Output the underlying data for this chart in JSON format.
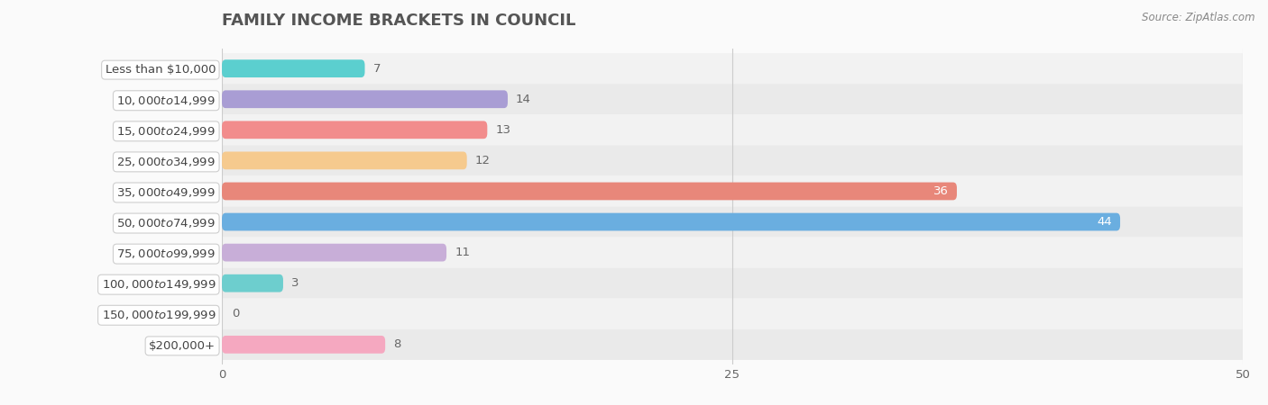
{
  "title": "FAMILY INCOME BRACKETS IN COUNCIL",
  "source": "Source: ZipAtlas.com",
  "categories": [
    "Less than $10,000",
    "$10,000 to $14,999",
    "$15,000 to $24,999",
    "$25,000 to $34,999",
    "$35,000 to $49,999",
    "$50,000 to $74,999",
    "$75,000 to $99,999",
    "$100,000 to $149,999",
    "$150,000 to $199,999",
    "$200,000+"
  ],
  "values": [
    7,
    14,
    13,
    12,
    36,
    44,
    11,
    3,
    0,
    8
  ],
  "bar_colors": [
    "#5BCFCF",
    "#A99DD4",
    "#F28C8C",
    "#F6CA8E",
    "#E8877A",
    "#6aaee0",
    "#C8AED8",
    "#6DCECE",
    "#B0A8D8",
    "#F5A8C0"
  ],
  "xlim": [
    0,
    50
  ],
  "xticks": [
    0,
    25,
    50
  ],
  "title_fontsize": 13,
  "label_fontsize": 9.5,
  "value_fontsize": 9.5,
  "bar_height": 0.58,
  "row_colors": [
    "#f2f2f2",
    "#eaeaea"
  ]
}
